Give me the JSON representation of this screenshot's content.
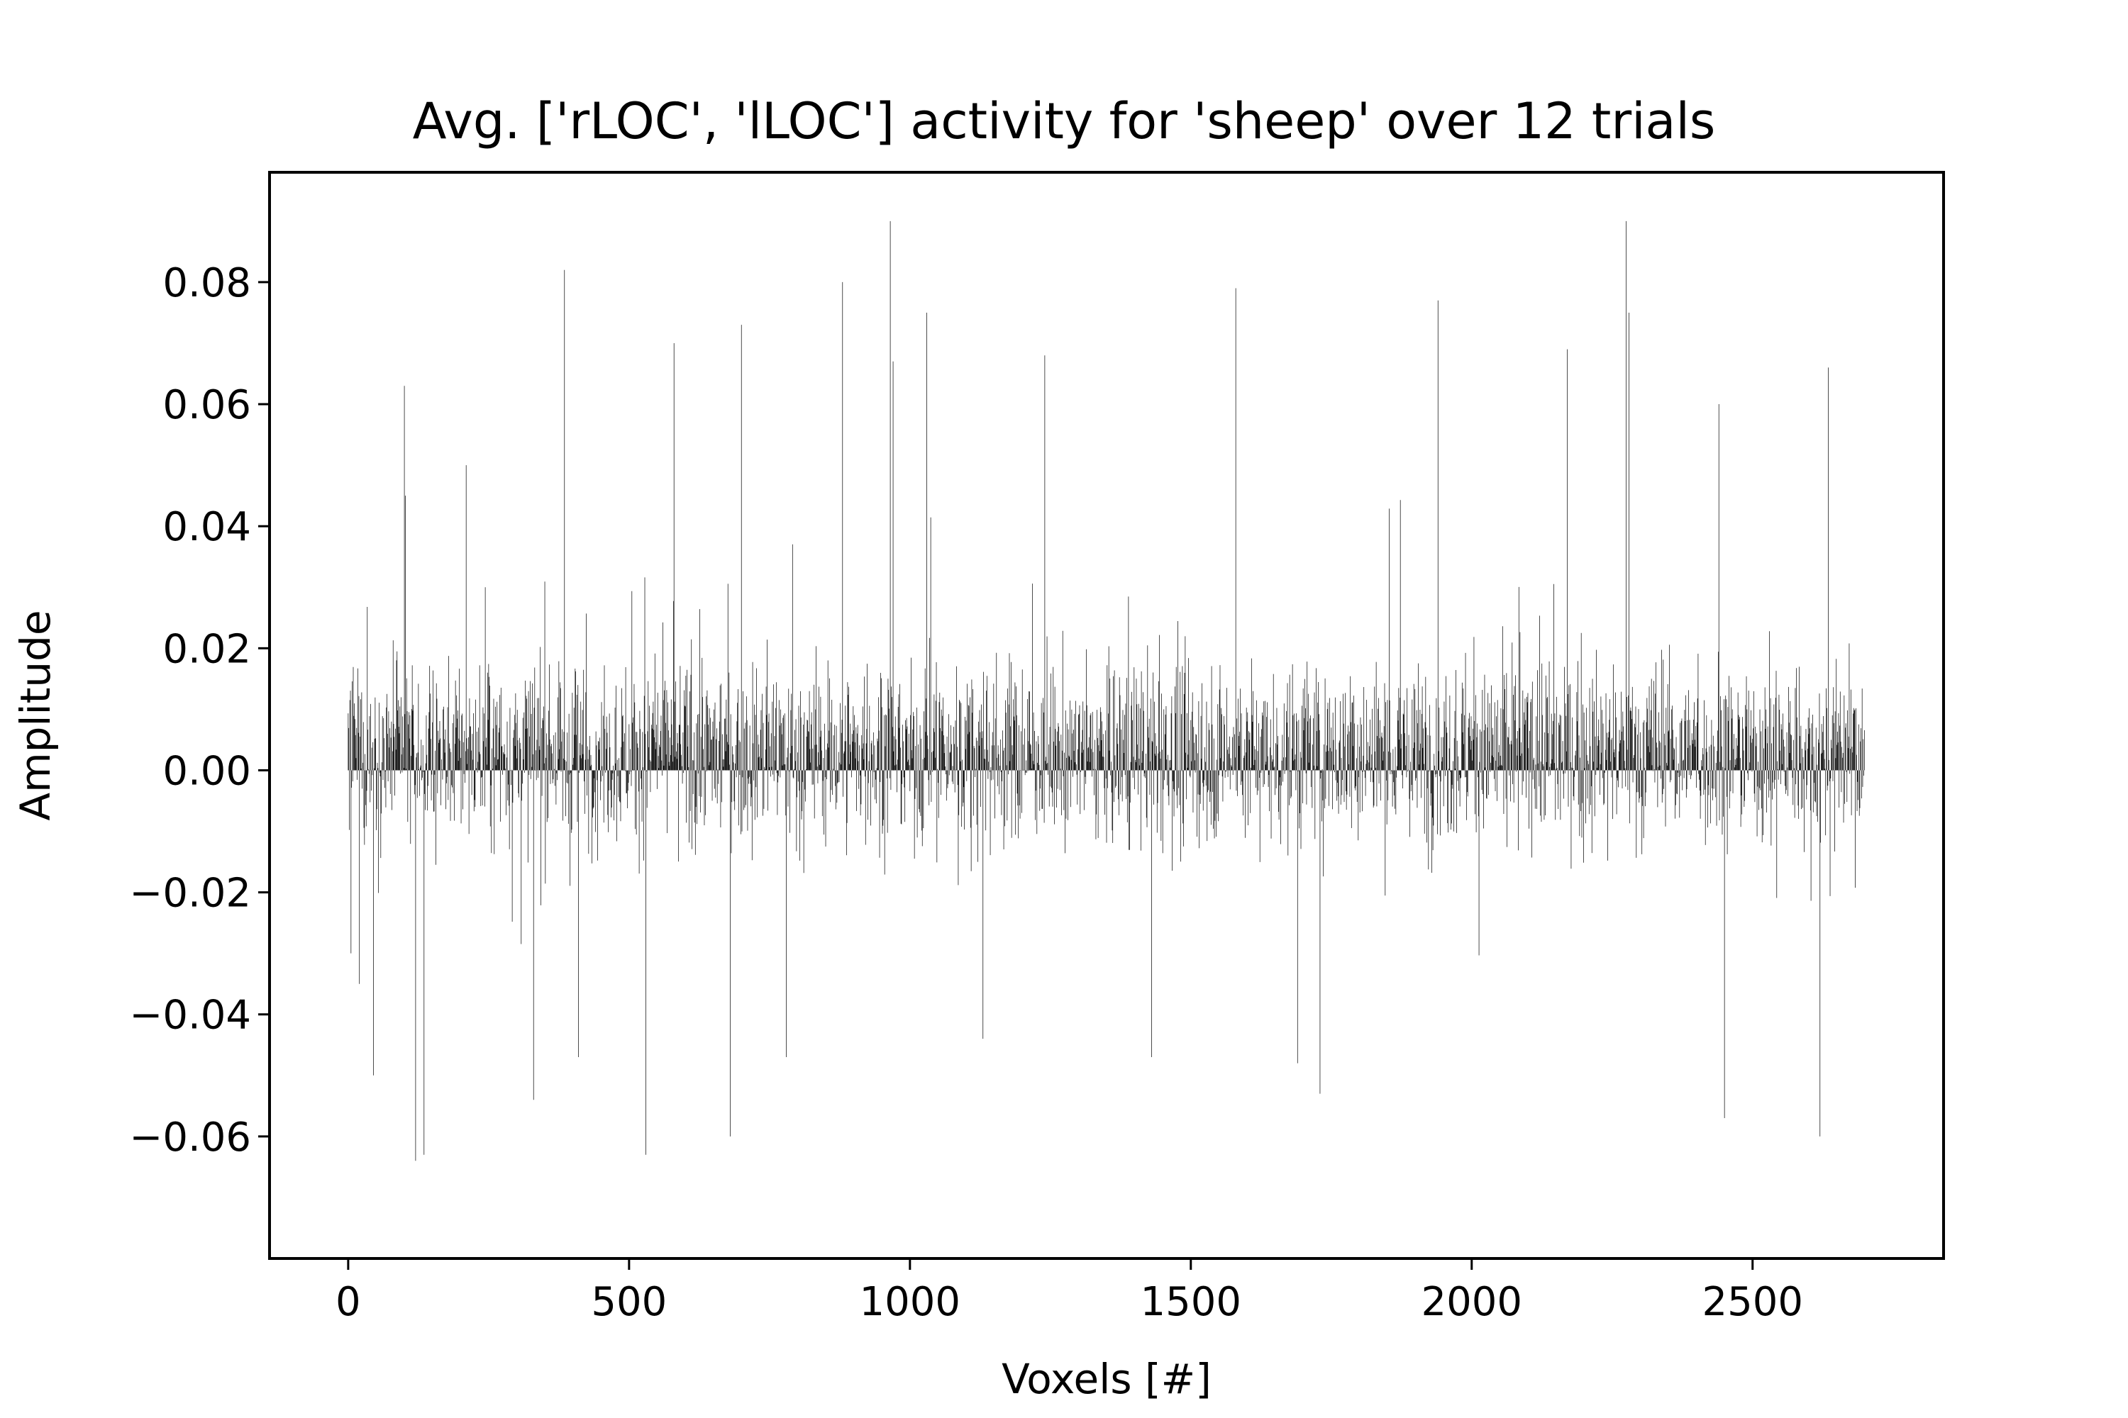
{
  "chart_data": {
    "type": "bar",
    "title": "Avg. ['rLOC', 'lLOC'] activity for 'sheep' over 12 trials",
    "xlabel": "Voxels [#]",
    "ylabel": "Amplitude",
    "xlim": [
      -140,
      2840
    ],
    "ylim": [
      -0.08,
      0.098
    ],
    "x_ticks": [
      0,
      500,
      1000,
      1500,
      2000,
      2500
    ],
    "x_tick_labels": [
      "0",
      "500",
      "1000",
      "1500",
      "2000",
      "2500"
    ],
    "y_ticks": [
      -0.06,
      -0.04,
      -0.02,
      0.0,
      0.02,
      0.04,
      0.06,
      0.08
    ],
    "y_tick_labels": [
      "−0.06",
      "−0.04",
      "−0.02",
      "0.00",
      "0.02",
      "0.04",
      "0.06",
      "0.08"
    ],
    "grid": false,
    "legend": "none",
    "n_voxels": 2700,
    "bar_color": "#000000",
    "peaks": [
      {
        "x": 5,
        "value": 0.019
      },
      {
        "x": 5,
        "value": -0.03
      },
      {
        "x": 20,
        "value": -0.035
      },
      {
        "x": 45,
        "value": -0.05
      },
      {
        "x": 100,
        "value": 0.063
      },
      {
        "x": 102,
        "value": 0.045
      },
      {
        "x": 120,
        "value": -0.064
      },
      {
        "x": 135,
        "value": -0.063
      },
      {
        "x": 210,
        "value": 0.05
      },
      {
        "x": 330,
        "value": -0.054
      },
      {
        "x": 385,
        "value": 0.082
      },
      {
        "x": 410,
        "value": -0.047
      },
      {
        "x": 530,
        "value": -0.063
      },
      {
        "x": 580,
        "value": 0.07
      },
      {
        "x": 680,
        "value": -0.06
      },
      {
        "x": 700,
        "value": 0.073
      },
      {
        "x": 780,
        "value": -0.047
      },
      {
        "x": 880,
        "value": 0.08
      },
      {
        "x": 965,
        "value": 0.09
      },
      {
        "x": 970,
        "value": 0.067
      },
      {
        "x": 1030,
        "value": 0.075
      },
      {
        "x": 1130,
        "value": -0.044
      },
      {
        "x": 1240,
        "value": 0.068
      },
      {
        "x": 1430,
        "value": -0.047
      },
      {
        "x": 1580,
        "value": 0.079
      },
      {
        "x": 1690,
        "value": -0.048
      },
      {
        "x": 1730,
        "value": -0.053
      },
      {
        "x": 1940,
        "value": 0.077
      },
      {
        "x": 2170,
        "value": 0.069
      },
      {
        "x": 2275,
        "value": 0.09
      },
      {
        "x": 2280,
        "value": 0.075
      },
      {
        "x": 2440,
        "value": 0.06
      },
      {
        "x": 2450,
        "value": -0.057
      },
      {
        "x": 2620,
        "value": -0.06
      },
      {
        "x": 2635,
        "value": 0.066
      },
      {
        "x": 2700,
        "value": -0.012
      }
    ]
  }
}
